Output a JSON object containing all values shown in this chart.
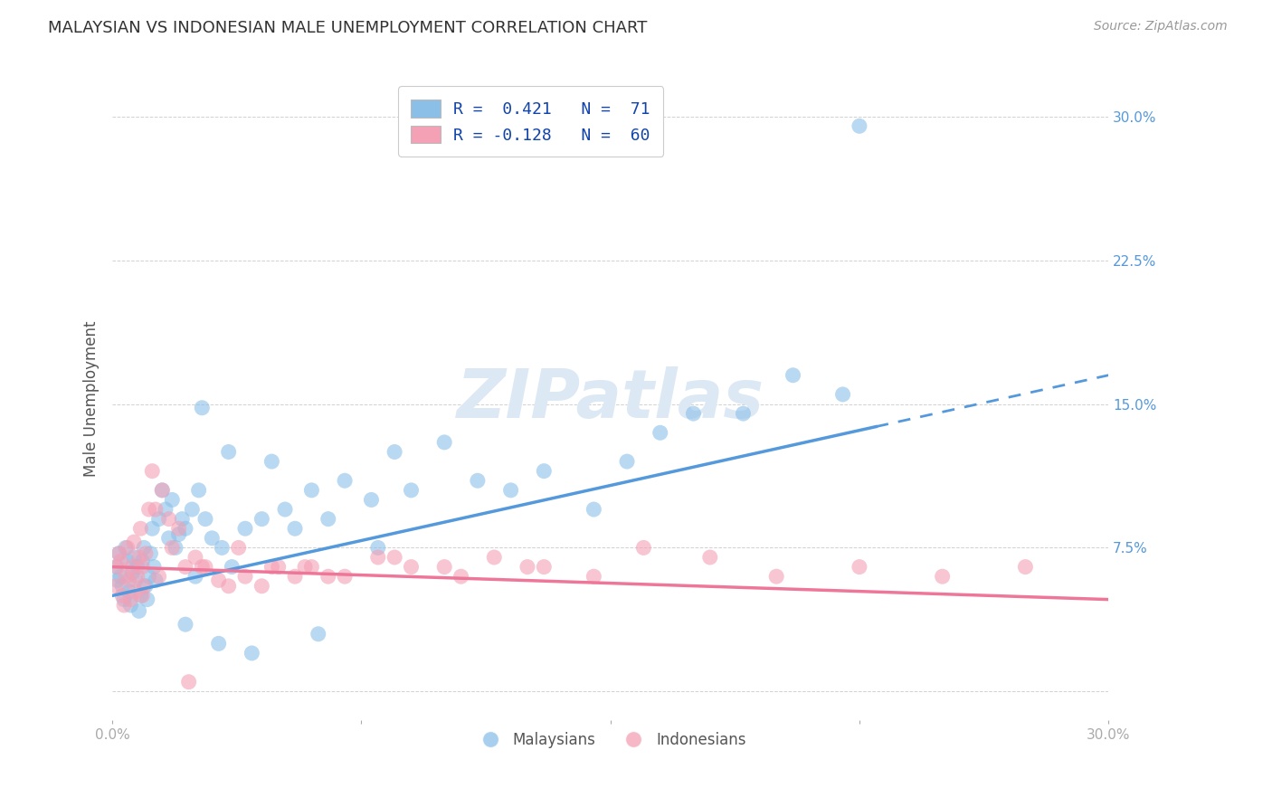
{
  "title": "MALAYSIAN VS INDONESIAN MALE UNEMPLOYMENT CORRELATION CHART",
  "source": "Source: ZipAtlas.com",
  "ylabel": "Male Unemployment",
  "blue_color": "#8BBFE8",
  "pink_color": "#F4A0B5",
  "blue_line_color": "#5599DD",
  "pink_line_color": "#EE7799",
  "grid_color": "#CCCCCC",
  "title_color": "#333333",
  "watermark_color": "#DCE9F5",
  "malaysians_label": "Malaysians",
  "indonesians_label": "Indonesians",
  "xlim": [
    0.0,
    30.0
  ],
  "ylim": [
    -1.5,
    32.0
  ],
  "blue_line_x0": 0.0,
  "blue_line_y0": 5.0,
  "blue_line_x1": 30.0,
  "blue_line_y1": 16.5,
  "blue_solid_end_x": 23.0,
  "pink_line_x0": 0.0,
  "pink_line_y0": 6.5,
  "pink_line_x1": 30.0,
  "pink_line_y1": 4.8,
  "blue_scatter_x": [
    0.1,
    0.15,
    0.2,
    0.25,
    0.3,
    0.35,
    0.4,
    0.45,
    0.5,
    0.55,
    0.6,
    0.65,
    0.7,
    0.75,
    0.8,
    0.85,
    0.9,
    0.95,
    1.0,
    1.05,
    1.1,
    1.15,
    1.2,
    1.25,
    1.3,
    1.4,
    1.5,
    1.6,
    1.7,
    1.8,
    1.9,
    2.0,
    2.1,
    2.2,
    2.4,
    2.6,
    2.8,
    3.0,
    3.3,
    3.6,
    4.0,
    4.5,
    5.2,
    6.0,
    7.0,
    8.5,
    10.0,
    12.0,
    14.5,
    16.5,
    19.0,
    22.0,
    5.5,
    6.5,
    7.8,
    9.0,
    11.0,
    13.0,
    15.5,
    17.5,
    20.5,
    3.5,
    4.8,
    2.5,
    2.2,
    3.2,
    4.2,
    6.2,
    8.0,
    22.5,
    2.7
  ],
  "blue_scatter_y": [
    6.5,
    5.8,
    7.2,
    6.0,
    5.5,
    4.8,
    7.5,
    6.8,
    5.2,
    4.5,
    6.2,
    7.0,
    5.8,
    6.5,
    4.2,
    5.0,
    6.8,
    7.5,
    5.5,
    4.8,
    6.0,
    7.2,
    8.5,
    6.5,
    5.8,
    9.0,
    10.5,
    9.5,
    8.0,
    10.0,
    7.5,
    8.2,
    9.0,
    8.5,
    9.5,
    10.5,
    9.0,
    8.0,
    7.5,
    6.5,
    8.5,
    9.0,
    9.5,
    10.5,
    11.0,
    12.5,
    13.0,
    10.5,
    9.5,
    13.5,
    14.5,
    15.5,
    8.5,
    9.0,
    10.0,
    10.5,
    11.0,
    11.5,
    12.0,
    14.5,
    16.5,
    12.5,
    12.0,
    6.0,
    3.5,
    2.5,
    2.0,
    3.0,
    7.5,
    29.5,
    14.8
  ],
  "pink_scatter_x": [
    0.1,
    0.15,
    0.2,
    0.25,
    0.3,
    0.35,
    0.4,
    0.45,
    0.5,
    0.55,
    0.6,
    0.65,
    0.7,
    0.75,
    0.8,
    0.85,
    0.9,
    0.95,
    1.0,
    1.1,
    1.2,
    1.3,
    1.5,
    1.7,
    2.0,
    2.2,
    2.5,
    2.8,
    3.2,
    3.5,
    4.0,
    4.5,
    5.0,
    5.5,
    6.0,
    7.0,
    8.0,
    9.0,
    10.0,
    11.5,
    13.0,
    14.5,
    16.0,
    18.0,
    20.0,
    22.5,
    25.0,
    27.5,
    3.8,
    4.8,
    6.5,
    8.5,
    10.5,
    12.5,
    2.7,
    1.8,
    0.9,
    1.4,
    2.3,
    5.8
  ],
  "pink_scatter_y": [
    5.5,
    6.5,
    7.2,
    6.8,
    5.0,
    4.5,
    6.0,
    7.5,
    5.8,
    4.8,
    6.5,
    7.8,
    5.2,
    6.0,
    7.0,
    8.5,
    6.5,
    5.5,
    7.2,
    9.5,
    11.5,
    9.5,
    10.5,
    9.0,
    8.5,
    6.5,
    7.0,
    6.5,
    5.8,
    5.5,
    6.0,
    5.5,
    6.5,
    6.0,
    6.5,
    6.0,
    7.0,
    6.5,
    6.5,
    7.0,
    6.5,
    6.0,
    7.5,
    7.0,
    6.0,
    6.5,
    6.0,
    6.5,
    7.5,
    6.5,
    6.0,
    7.0,
    6.0,
    6.5,
    6.5,
    7.5,
    5.0,
    6.0,
    0.5,
    6.5
  ]
}
